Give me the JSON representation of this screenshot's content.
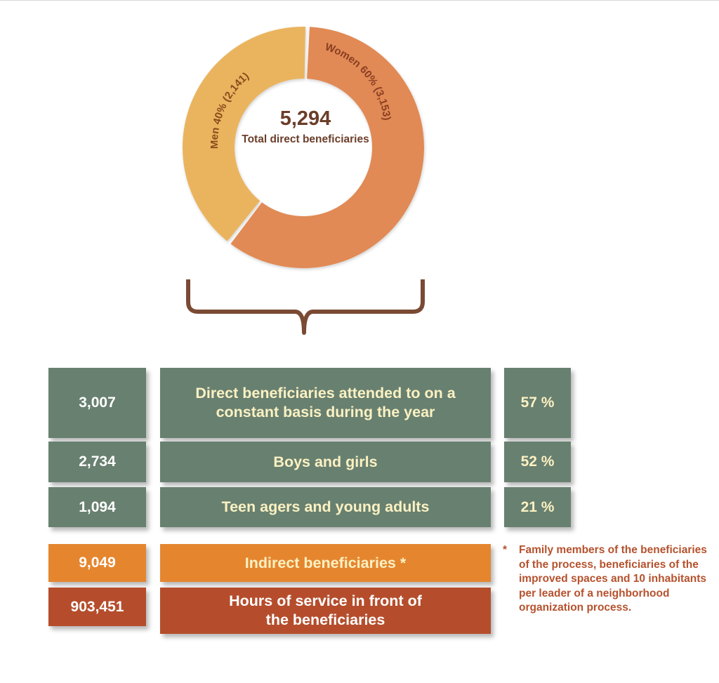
{
  "chart_data": {
    "type": "pie",
    "donut": true,
    "center_value": "5,294",
    "center_label": "Total direct beneficiaries",
    "slices": [
      {
        "label": "Women 60% (3,153)",
        "name": "Women",
        "percent": 60,
        "value": 3153,
        "color": "#e18a54"
      },
      {
        "label": "Men 40% (2,141)",
        "name": "Men",
        "percent": 40,
        "value": 2141,
        "color": "#eab45f"
      }
    ]
  },
  "colors": {
    "green_box": "#688070",
    "indirect_box": "#e5862f",
    "hours_box": "#b54d2c",
    "brace": "#7a4a33",
    "highlight_text": "#fbf1c2",
    "footnote_text": "#b5522e"
  },
  "table": {
    "rows": [
      {
        "number": "3,007",
        "label": "Direct beneficiaries attended to on a constant basis during the year",
        "percent": "57 %"
      },
      {
        "number": "2,734",
        "label": "Boys and girls",
        "percent": "52 %"
      },
      {
        "number": "1,094",
        "label": "Teen agers and young adults",
        "percent": "21 %"
      }
    ],
    "indirect": {
      "number": "9,049",
      "label": "Indirect beneficiaries *"
    },
    "hours": {
      "number": "903,451",
      "label": "Hours of service in front of the beneficiaries"
    }
  },
  "footnote": {
    "marker": "*",
    "text": "Family members of the beneficiaries of the process, beneficiaries of the improved spaces and 10 inhabitants per leader of a neighborhood organization process."
  }
}
